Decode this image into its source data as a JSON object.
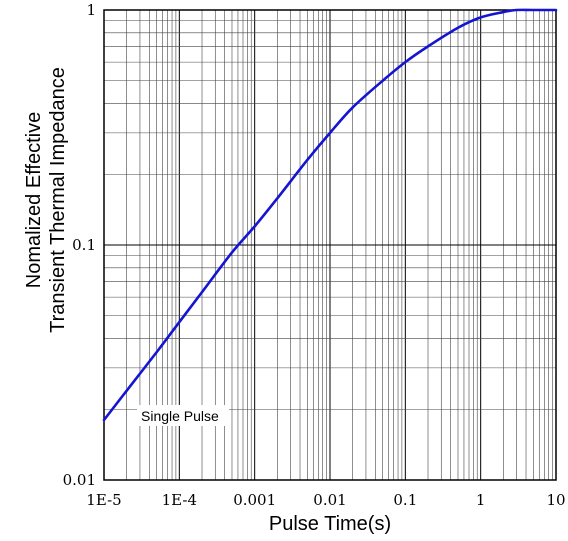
{
  "chart_data": {
    "type": "line",
    "xscale": "log",
    "yscale": "log",
    "xlim": [
      1e-05,
      10
    ],
    "ylim": [
      0.01,
      1
    ],
    "grid": true,
    "xlabel": "Pulse Time(s)",
    "ylabel": [
      "Nomalized Effective",
      "Transient Thermal Impedance"
    ],
    "x_tick_labels": [
      "1E-5",
      "1E-4",
      "0.001",
      "0.01",
      "0.1",
      "1",
      "10"
    ],
    "y_tick_labels": [
      "0.01",
      "0.1",
      "1"
    ],
    "annotation": "Single Pulse",
    "line_color": "#1414d2",
    "series": [
      {
        "x": [
          1e-05,
          2e-05,
          5e-05,
          0.0001,
          0.0002,
          0.0005,
          0.001,
          0.002,
          0.005,
          0.01,
          0.02,
          0.05,
          0.1,
          0.2,
          0.5,
          1,
          2,
          3,
          5,
          10
        ],
        "y": [
          0.018,
          0.024,
          0.035,
          0.047,
          0.063,
          0.093,
          0.12,
          0.158,
          0.23,
          0.3,
          0.385,
          0.5,
          0.6,
          0.7,
          0.84,
          0.93,
          0.98,
          1.0,
          1.0,
          1.0
        ]
      }
    ]
  }
}
